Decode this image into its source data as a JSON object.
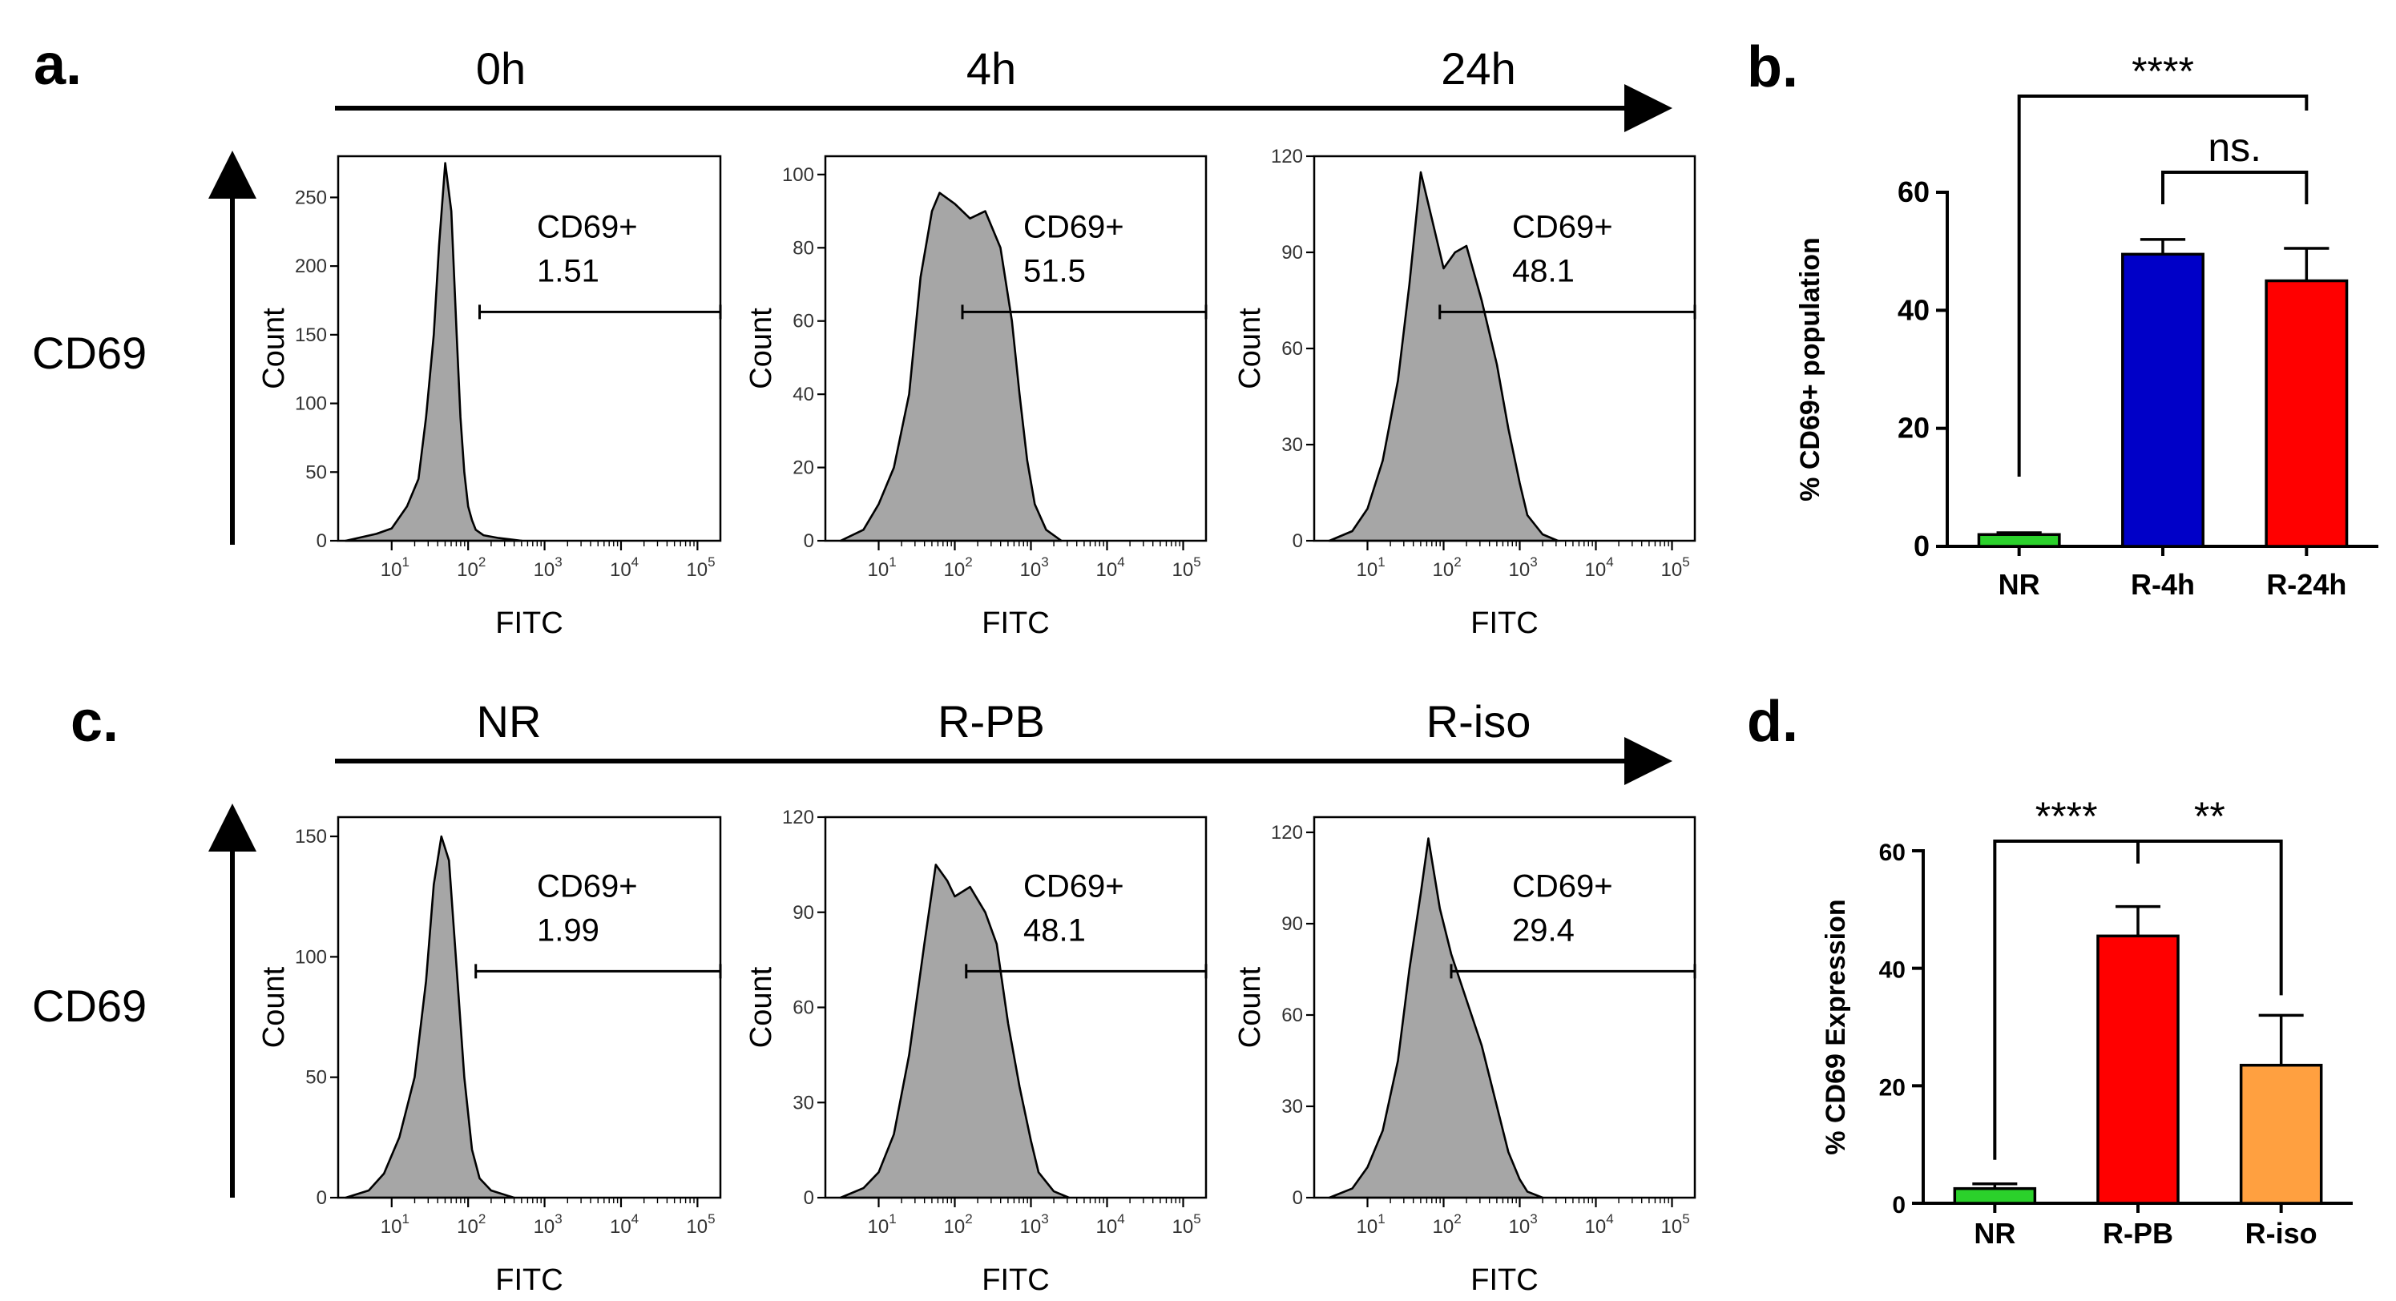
{
  "chart_data": [
    {
      "panel": "a.",
      "type": "area",
      "kind": "histogram-series",
      "row_label": "CD69",
      "timeline_labels": [
        "0h",
        "4h",
        "24h"
      ],
      "plots": [
        {
          "xlabel": "FITC",
          "ylabel": "Count",
          "ylim": [
            0,
            280
          ],
          "yticks": [
            0,
            50,
            100,
            150,
            200,
            250
          ],
          "xlim_log10": [
            0.3,
            5.3
          ],
          "xticks_log10": [
            1,
            2,
            3,
            4,
            5
          ],
          "gate": {
            "label": "CD69+",
            "value": "1.51",
            "x_start_log10": 2.15,
            "x_end_log10": 5.3
          },
          "x_log10": [
            0.4,
            0.8,
            1.0,
            1.2,
            1.35,
            1.45,
            1.55,
            1.62,
            1.7,
            1.78,
            1.85,
            1.9,
            1.95,
            2.0,
            2.05,
            2.1,
            2.2,
            2.4,
            2.7
          ],
          "counts": [
            0,
            5,
            9,
            25,
            45,
            90,
            150,
            215,
            275,
            240,
            150,
            90,
            50,
            25,
            15,
            8,
            4,
            2,
            0
          ]
        },
        {
          "xlabel": "FITC",
          "ylabel": "Count",
          "ylim": [
            0,
            105
          ],
          "yticks": [
            0,
            20,
            40,
            60,
            80,
            100
          ],
          "xlim_log10": [
            0.3,
            5.3
          ],
          "xticks_log10": [
            1,
            2,
            3,
            4,
            5
          ],
          "gate": {
            "label": "CD69+",
            "value": "51.5",
            "x_start_log10": 2.1,
            "x_end_log10": 5.3
          },
          "x_log10": [
            0.5,
            0.8,
            1.0,
            1.2,
            1.4,
            1.55,
            1.7,
            1.8,
            2.0,
            2.2,
            2.4,
            2.6,
            2.75,
            2.85,
            2.95,
            3.05,
            3.2,
            3.4
          ],
          "counts": [
            0,
            3,
            10,
            20,
            40,
            72,
            90,
            95,
            92,
            88,
            90,
            80,
            60,
            40,
            22,
            10,
            3,
            0
          ]
        },
        {
          "xlabel": "FITC",
          "ylabel": "Count",
          "ylim": [
            0,
            120
          ],
          "yticks": [
            0,
            30,
            60,
            90,
            120
          ],
          "xlim_log10": [
            0.3,
            5.3
          ],
          "xticks_log10": [
            1,
            2,
            3,
            4,
            5
          ],
          "gate": {
            "label": "CD69+",
            "value": "48.1",
            "x_start_log10": 1.95,
            "x_end_log10": 5.3
          },
          "x_log10": [
            0.5,
            0.8,
            1.0,
            1.2,
            1.4,
            1.55,
            1.7,
            1.85,
            2.0,
            2.15,
            2.3,
            2.5,
            2.7,
            2.85,
            3.0,
            3.1,
            3.3,
            3.5
          ],
          "counts": [
            0,
            3,
            10,
            25,
            50,
            80,
            115,
            100,
            85,
            90,
            92,
            75,
            55,
            35,
            18,
            8,
            2,
            0
          ]
        }
      ]
    },
    {
      "panel": "b.",
      "type": "bar",
      "ylabel": "% CD69+ population",
      "ylim": [
        0,
        60
      ],
      "yticks": [
        0,
        20,
        40,
        60
      ],
      "categories": [
        "NR",
        "R-4h",
        "R-24h"
      ],
      "values": [
        2,
        49.5,
        45
      ],
      "errors": [
        0.3,
        2.5,
        5.5
      ],
      "colors": [
        "#2bd12b",
        "#0000c8",
        "#ff0000"
      ],
      "comparisons": [
        {
          "from": 0,
          "to": 2,
          "label": "****"
        },
        {
          "from": 1,
          "to": 2,
          "label": "ns."
        }
      ]
    },
    {
      "panel": "c.",
      "type": "area",
      "kind": "histogram-series",
      "row_label": "CD69",
      "timeline_labels": [
        "NR",
        "R-PB",
        "R-iso"
      ],
      "plots": [
        {
          "xlabel": "FITC",
          "ylabel": "Count",
          "ylim": [
            0,
            158
          ],
          "yticks": [
            0,
            50,
            100,
            150
          ],
          "xlim_log10": [
            0.3,
            5.3
          ],
          "xticks_log10": [
            1,
            2,
            3,
            4,
            5
          ],
          "gate": {
            "label": "CD69+",
            "value": "1.99",
            "x_start_log10": 2.1,
            "x_end_log10": 5.3
          },
          "x_log10": [
            0.4,
            0.7,
            0.9,
            1.1,
            1.3,
            1.45,
            1.55,
            1.65,
            1.75,
            1.85,
            1.95,
            2.05,
            2.15,
            2.3,
            2.6
          ],
          "counts": [
            0,
            3,
            10,
            25,
            50,
            90,
            130,
            150,
            140,
            95,
            50,
            20,
            8,
            3,
            0
          ]
        },
        {
          "xlabel": "FITC",
          "ylabel": "Count",
          "ylim": [
            0,
            120
          ],
          "yticks": [
            0,
            30,
            60,
            90,
            120
          ],
          "xlim_log10": [
            0.3,
            5.3
          ],
          "xticks_log10": [
            1,
            2,
            3,
            4,
            5
          ],
          "gate": {
            "label": "CD69+",
            "value": "48.1",
            "x_start_log10": 2.15,
            "x_end_log10": 5.3
          },
          "x_log10": [
            0.5,
            0.8,
            1.0,
            1.2,
            1.4,
            1.6,
            1.75,
            1.9,
            2.0,
            2.2,
            2.4,
            2.55,
            2.7,
            2.85,
            3.0,
            3.1,
            3.3,
            3.5
          ],
          "counts": [
            0,
            3,
            8,
            20,
            45,
            80,
            105,
            100,
            95,
            98,
            90,
            80,
            55,
            35,
            18,
            8,
            2,
            0
          ]
        },
        {
          "xlabel": "FITC",
          "ylabel": "Count",
          "ylim": [
            0,
            125
          ],
          "yticks": [
            0,
            30,
            60,
            90,
            120
          ],
          "xlim_log10": [
            0.3,
            5.3
          ],
          "xticks_log10": [
            1,
            2,
            3,
            4,
            5
          ],
          "gate": {
            "label": "CD69+",
            "value": "29.4",
            "x_start_log10": 2.1,
            "x_end_log10": 5.3
          },
          "x_log10": [
            0.5,
            0.8,
            1.0,
            1.2,
            1.4,
            1.55,
            1.7,
            1.8,
            1.95,
            2.1,
            2.3,
            2.5,
            2.7,
            2.85,
            3.0,
            3.1,
            3.3
          ],
          "counts": [
            0,
            3,
            10,
            22,
            45,
            75,
            100,
            118,
            95,
            80,
            65,
            50,
            30,
            15,
            6,
            2,
            0
          ]
        }
      ]
    },
    {
      "panel": "d.",
      "type": "bar",
      "ylabel": "% CD69 Expression",
      "ylim": [
        0,
        60
      ],
      "yticks": [
        0,
        20,
        40,
        60
      ],
      "categories": [
        "NR",
        "R-PB",
        "R-iso"
      ],
      "values": [
        2.5,
        45.5,
        23.5
      ],
      "errors": [
        0.8,
        5,
        8.5
      ],
      "colors": [
        "#2bd12b",
        "#ff0000",
        "#ffa040"
      ],
      "comparisons": [
        {
          "from": 0,
          "to": 1,
          "label": "****"
        },
        {
          "from": 1,
          "to": 2,
          "label": "**"
        }
      ]
    }
  ]
}
